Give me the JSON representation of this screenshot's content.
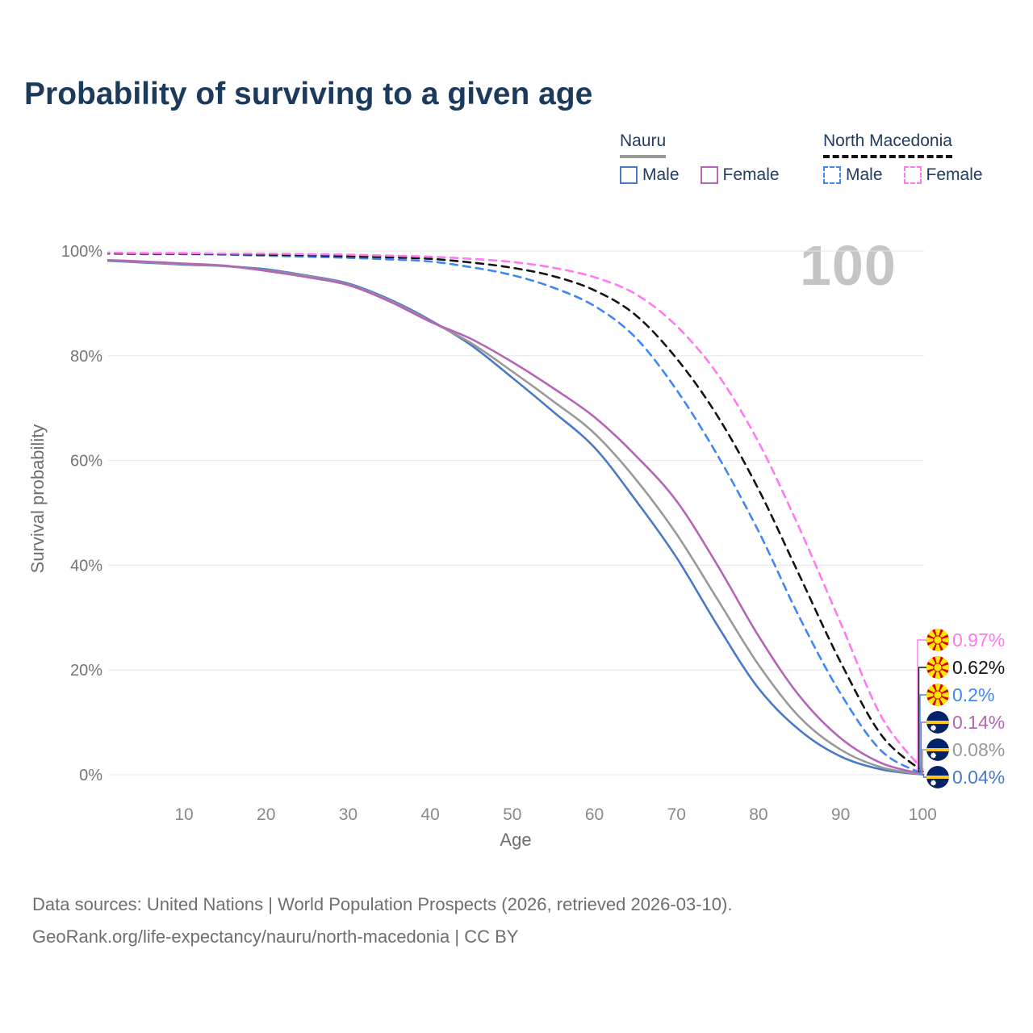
{
  "title": "Probability of surviving to a given age",
  "watermark": "100",
  "legend": {
    "groups": [
      {
        "label": "Nauru",
        "items": [
          {
            "label": "Male"
          },
          {
            "label": "Female"
          }
        ]
      },
      {
        "label": "North Macedonia",
        "items": [
          {
            "label": "Male"
          },
          {
            "label": "Female"
          }
        ]
      }
    ]
  },
  "chart_data": {
    "type": "line",
    "title": "Probability of surviving to a given age",
    "xlabel": "Age",
    "ylabel": "Survival probability",
    "xlim": [
      0,
      100
    ],
    "ylim": [
      0,
      100
    ],
    "grid": "horizontal",
    "legend_position": "top-right",
    "x_ticks": [
      10,
      20,
      30,
      40,
      50,
      60,
      70,
      80,
      90,
      100
    ],
    "y_ticks": [
      0,
      20,
      40,
      60,
      80,
      100
    ],
    "y_tick_suffix": "%",
    "x": [
      0,
      5,
      10,
      15,
      20,
      25,
      30,
      35,
      40,
      45,
      50,
      55,
      60,
      65,
      70,
      75,
      80,
      85,
      90,
      95,
      100
    ],
    "series": [
      {
        "name": "Nauru Male",
        "country": "Nauru",
        "sex": "Male",
        "style": "solid",
        "color": "#4a79c5",
        "values": [
          98.2,
          97.8,
          97.4,
          97.1,
          96.5,
          95.3,
          93.8,
          90.8,
          86.8,
          82.0,
          75.8,
          69.3,
          62.5,
          52.5,
          41.5,
          28.5,
          16.5,
          8.5,
          3.5,
          1.0,
          0.04
        ]
      },
      {
        "name": "Nauru Both sexes",
        "country": "Nauru",
        "sex": "Both sexes",
        "style": "solid",
        "color": "#999999",
        "values": [
          98.3,
          97.9,
          97.5,
          97.1,
          96.3,
          95.2,
          93.6,
          90.6,
          86.6,
          82.4,
          77.0,
          71.3,
          65.2,
          56.5,
          46.0,
          33.5,
          21.0,
          11.0,
          4.8,
          1.4,
          0.08
        ]
      },
      {
        "name": "Nauru Female",
        "country": "Nauru",
        "sex": "Female",
        "style": "solid",
        "color": "#b465b5",
        "values": [
          98.3,
          98.0,
          97.6,
          97.2,
          96.2,
          95.0,
          93.5,
          90.4,
          86.5,
          83.2,
          78.8,
          73.8,
          68.3,
          61.0,
          52.3,
          40.0,
          26.5,
          15.0,
          7.0,
          2.2,
          0.14
        ]
      },
      {
        "name": "North Macedonia Male",
        "country": "North Macedonia",
        "sex": "Male",
        "style": "dashed",
        "color": "#3f87f5",
        "values": [
          99.5,
          99.4,
          99.4,
          99.3,
          99.1,
          98.9,
          98.7,
          98.4,
          98.0,
          96.9,
          95.4,
          93.0,
          89.5,
          83.5,
          73.5,
          61.0,
          46.5,
          30.0,
          15.5,
          4.5,
          0.2
        ]
      },
      {
        "name": "North Macedonia Both sexes",
        "country": "North Macedonia",
        "sex": "Both sexes",
        "style": "dashed",
        "color": "#141414",
        "values": [
          99.6,
          99.5,
          99.5,
          99.4,
          99.3,
          99.2,
          99.0,
          98.8,
          98.5,
          97.8,
          96.8,
          95.2,
          92.5,
          87.8,
          79.5,
          68.5,
          54.5,
          38.0,
          21.5,
          7.5,
          0.62
        ]
      },
      {
        "name": "North Macedonia Female",
        "country": "North Macedonia",
        "sex": "Female",
        "style": "dashed",
        "color": "#ff79f1",
        "values": [
          99.7,
          99.6,
          99.6,
          99.5,
          99.5,
          99.4,
          99.3,
          99.1,
          98.9,
          98.5,
          97.9,
          96.8,
          95.0,
          91.8,
          85.7,
          76.5,
          63.5,
          47.0,
          29.0,
          11.0,
          0.97
        ]
      }
    ],
    "end_labels": [
      {
        "series_index": 5,
        "text": "0.97%",
        "color": "#ff79f1",
        "flag": "north-macedonia"
      },
      {
        "series_index": 4,
        "text": "0.62%",
        "color": "#141414",
        "flag": "north-macedonia"
      },
      {
        "series_index": 3,
        "text": "0.2%",
        "color": "#3f87f5",
        "flag": "north-macedonia"
      },
      {
        "series_index": 2,
        "text": "0.14%",
        "color": "#b465b5",
        "flag": "nauru"
      },
      {
        "series_index": 1,
        "text": "0.08%",
        "color": "#999999",
        "flag": "nauru"
      },
      {
        "series_index": 0,
        "text": "0.04%",
        "color": "#4a79c5",
        "flag": "nauru"
      }
    ]
  },
  "footer": {
    "line1": "Data sources: United Nations | World Population Prospects (2026, retrieved 2026-03-10).",
    "line2": "GeoRank.org/life-expectancy/nauru/north-macedonia | CC BY"
  }
}
